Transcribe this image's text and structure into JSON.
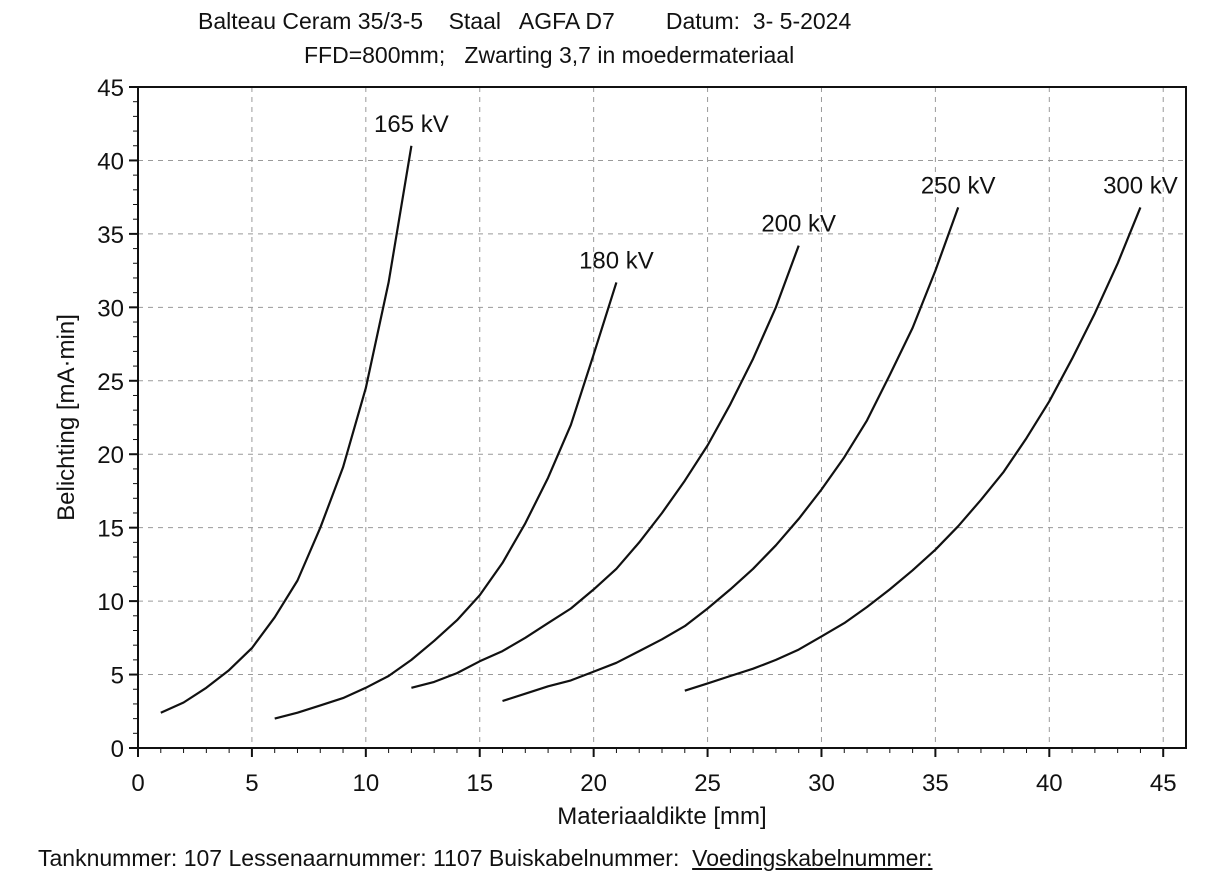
{
  "header": {
    "line1": "Balteau Ceram 35/3-5    Staal   AGFA D7        Datum:  3- 5-2024",
    "line2": "FFD=800mm;   Zwarting 3,7 in moedermateriaal"
  },
  "footer": {
    "text": "Tanknummer: 107 Lessenaarnummer: 1107 Buiskabelnummer:  ",
    "underlined": "Voedingskabelnummer:"
  },
  "chart_data": {
    "type": "line",
    "xlabel": "Materiaaldikte [mm]",
    "ylabel": "Belichting [mA·min]",
    "xlim": [
      0,
      46
    ],
    "ylim": [
      0,
      45
    ],
    "xticks": [
      0,
      5,
      10,
      15,
      20,
      25,
      30,
      35,
      40,
      45
    ],
    "yticks": [
      0,
      5,
      10,
      15,
      20,
      25,
      30,
      35,
      40,
      45
    ],
    "grid": true,
    "series": [
      {
        "name": "165 kV",
        "x": [
          1,
          2,
          3,
          4,
          5,
          6,
          7,
          8,
          9,
          10,
          11,
          12
        ],
        "y": [
          2.4,
          3.1,
          4.1,
          5.3,
          6.8,
          8.9,
          11.4,
          15.0,
          19.1,
          24.5,
          31.7,
          41.0
        ]
      },
      {
        "name": "180 kV",
        "x": [
          6,
          7,
          8,
          9,
          10,
          11,
          12,
          13,
          14,
          15,
          16,
          17,
          18,
          19,
          20,
          21
        ],
        "y": [
          2.0,
          2.4,
          2.9,
          3.4,
          4.1,
          4.9,
          6.0,
          7.3,
          8.7,
          10.4,
          12.6,
          15.3,
          18.4,
          22.0,
          26.8,
          31.7
        ]
      },
      {
        "name": "200 kV",
        "x": [
          12,
          13,
          14,
          15,
          16,
          17,
          18,
          19,
          20,
          21,
          22,
          23,
          24,
          25,
          26,
          27,
          28,
          29
        ],
        "y": [
          4.1,
          4.5,
          5.1,
          5.9,
          6.6,
          7.5,
          8.5,
          9.5,
          10.8,
          12.2,
          14.0,
          16.0,
          18.2,
          20.6,
          23.4,
          26.5,
          30.0,
          34.2
        ]
      },
      {
        "name": "250 kV",
        "x": [
          16,
          17,
          18,
          19,
          20,
          21,
          22,
          23,
          24,
          25,
          26,
          27,
          28,
          29,
          30,
          31,
          32,
          33,
          34,
          35,
          36
        ],
        "y": [
          3.2,
          3.7,
          4.2,
          4.6,
          5.2,
          5.8,
          6.6,
          7.4,
          8.3,
          9.5,
          10.8,
          12.2,
          13.8,
          15.6,
          17.6,
          19.8,
          22.3,
          25.4,
          28.6,
          32.5,
          36.8
        ]
      },
      {
        "name": "300 kV",
        "x": [
          24,
          25,
          26,
          27,
          28,
          29,
          30,
          31,
          32,
          33,
          34,
          35,
          36,
          37,
          38,
          39,
          40,
          41,
          42,
          43,
          44
        ],
        "y": [
          3.9,
          4.4,
          4.9,
          5.4,
          6.0,
          6.7,
          7.6,
          8.5,
          9.6,
          10.8,
          12.1,
          13.5,
          15.1,
          16.9,
          18.8,
          21.1,
          23.6,
          26.5,
          29.6,
          33.0,
          36.8
        ]
      }
    ]
  }
}
